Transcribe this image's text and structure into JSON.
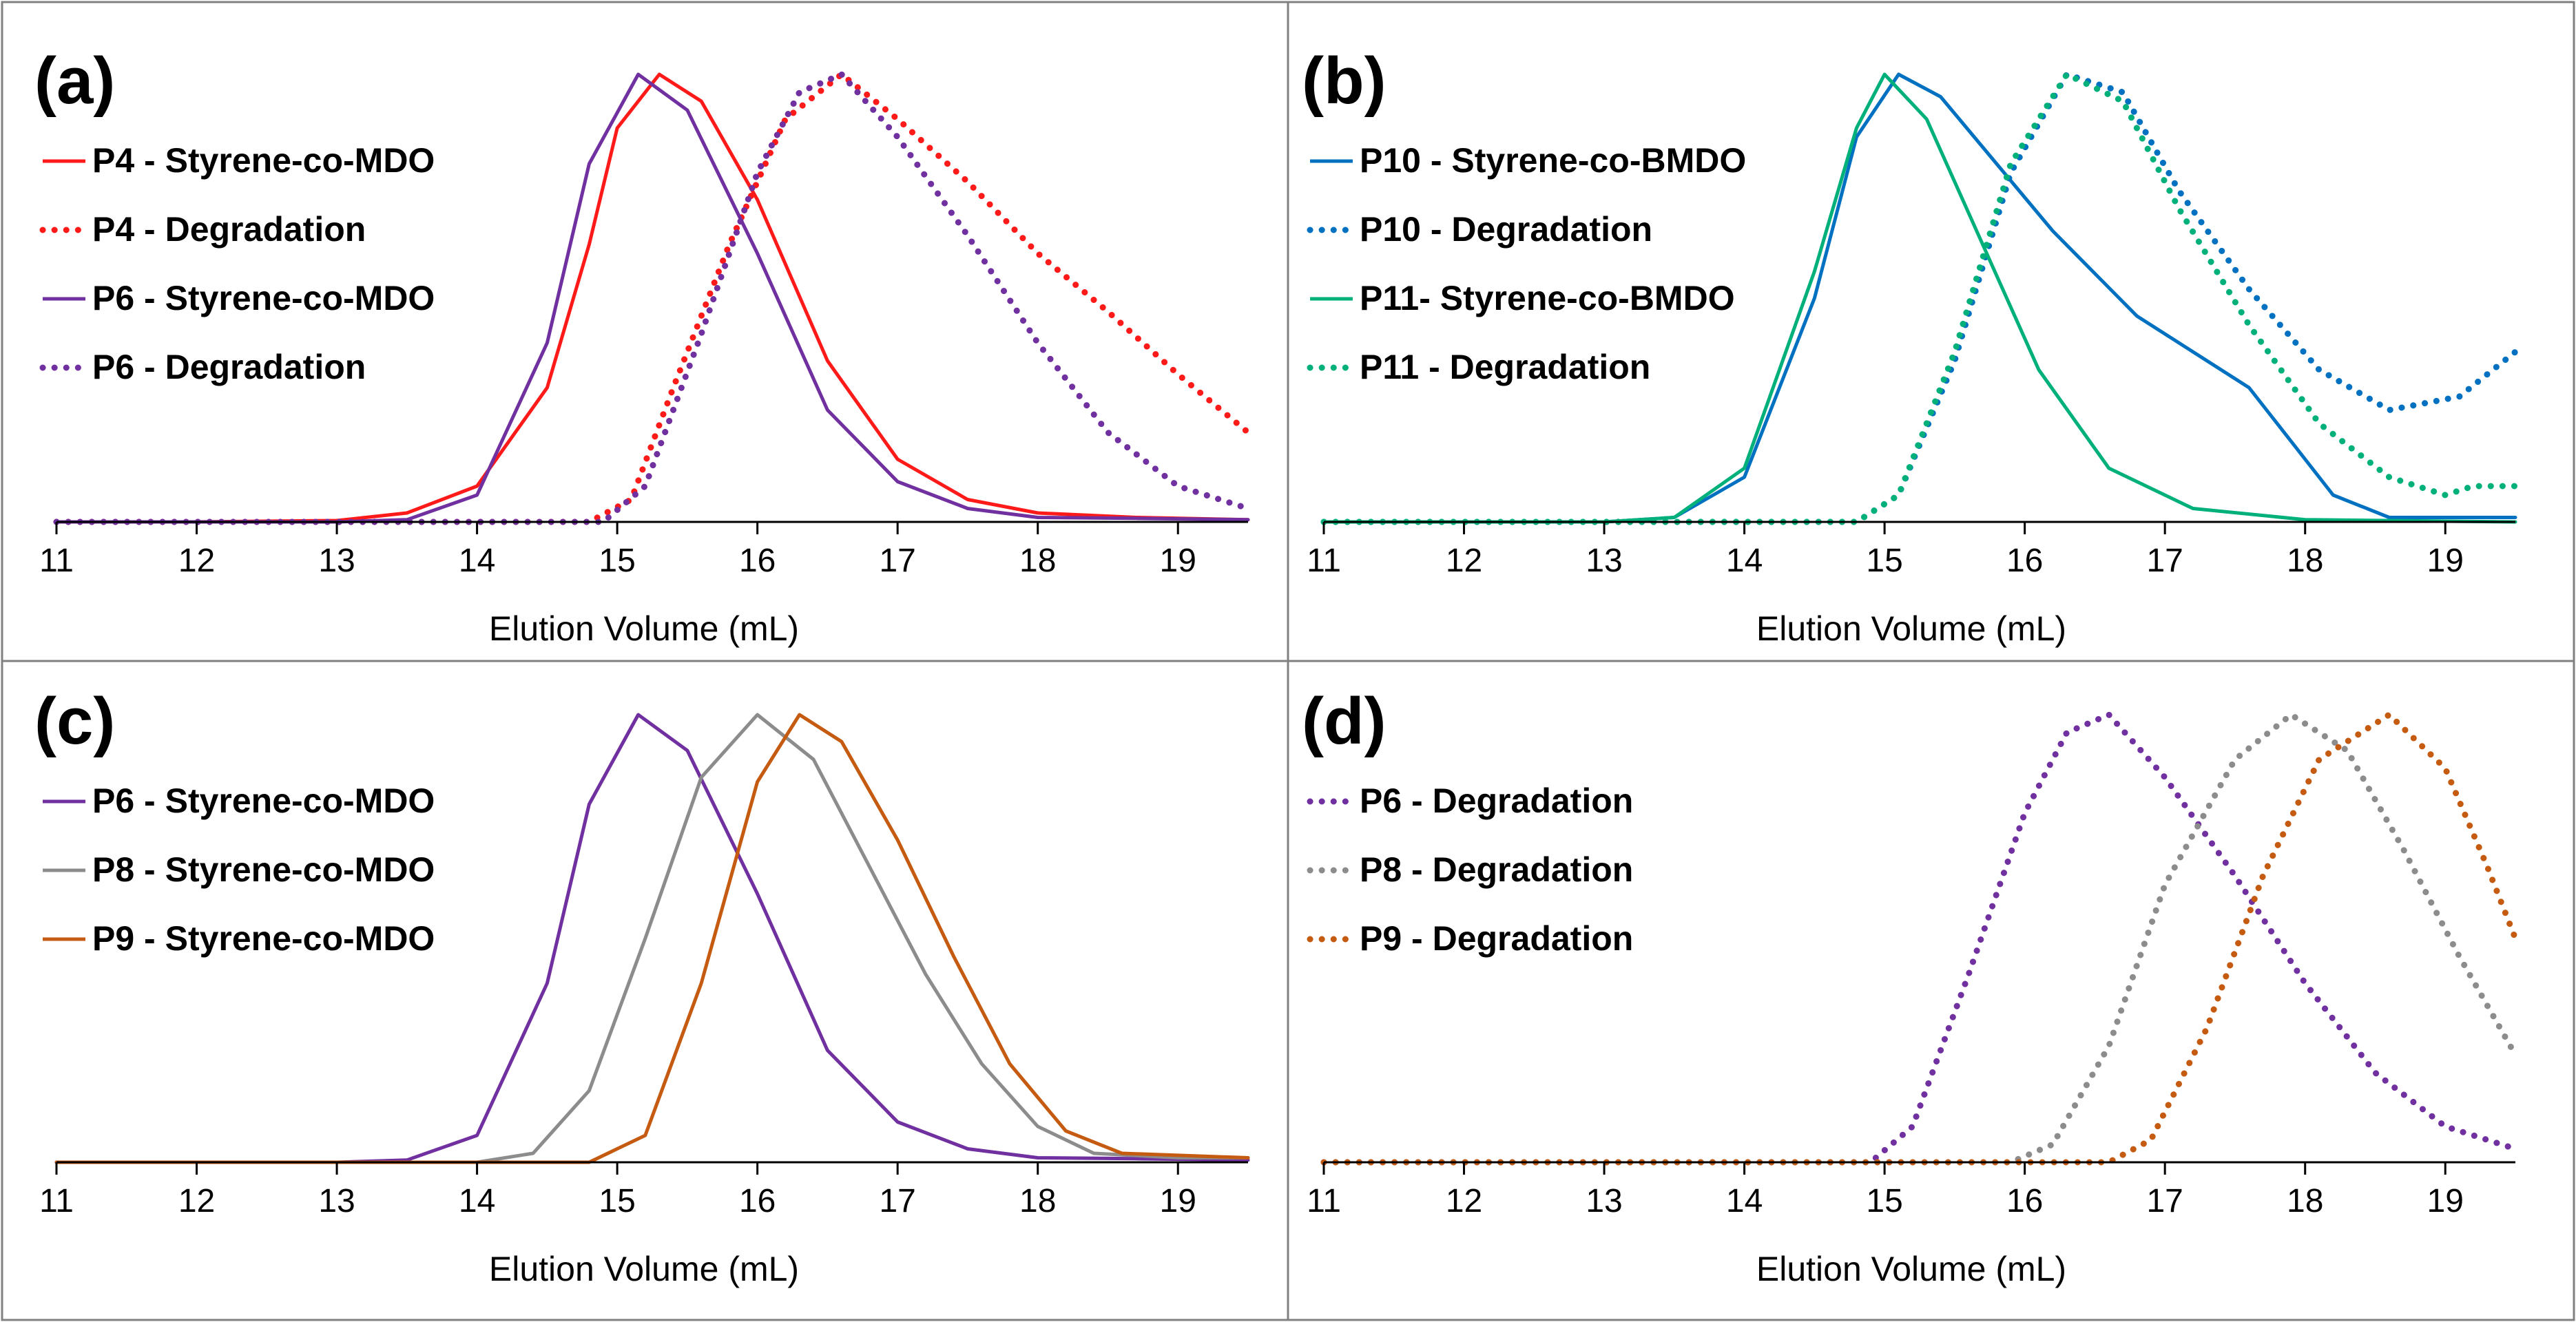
{
  "figure": {
    "x_axis": {
      "xlim": [
        11,
        19.5
      ],
      "ticks": [
        "11",
        "12",
        "13",
        "14",
        "15",
        "16",
        "17",
        "18",
        "19"
      ]
    }
  },
  "chart_data": [
    {
      "type": "line",
      "panel": "(a)",
      "xlabel": "Elution Volume (mL)",
      "ylabel": "",
      "xlim": [
        11,
        19.5
      ],
      "ylim": [
        0,
        1.0
      ],
      "series": [
        {
          "name": "P4 - Styrene-co-MDO",
          "color": "#ff1a1a",
          "style": "solid",
          "points": [
            [
              11,
              0
            ],
            [
              12,
              0
            ],
            [
              13,
              0.003
            ],
            [
              13.5,
              0.02
            ],
            [
              14,
              0.08
            ],
            [
              14.5,
              0.3
            ],
            [
              14.8,
              0.62
            ],
            [
              15.0,
              0.88
            ],
            [
              15.3,
              1.0
            ],
            [
              15.6,
              0.94
            ],
            [
              16.0,
              0.72
            ],
            [
              16.5,
              0.36
            ],
            [
              17,
              0.14
            ],
            [
              17.5,
              0.05
            ],
            [
              18,
              0.02
            ],
            [
              18.7,
              0.01
            ],
            [
              19.5,
              0.005
            ]
          ]
        },
        {
          "name": "P4 - Degradation",
          "color": "#ff1a1a",
          "style": "dotted",
          "points": [
            [
              11,
              0
            ],
            [
              14.8,
              0
            ],
            [
              15.1,
              0.05
            ],
            [
              15.4,
              0.3
            ],
            [
              15.8,
              0.62
            ],
            [
              16.2,
              0.9
            ],
            [
              16.6,
              1.0
            ],
            [
              17.0,
              0.9
            ],
            [
              17.5,
              0.76
            ],
            [
              18,
              0.6
            ],
            [
              18.5,
              0.47
            ],
            [
              19,
              0.33
            ],
            [
              19.5,
              0.2
            ]
          ]
        },
        {
          "name": "P6 - Styrene-co-MDO",
          "color": "#7030a0",
          "style": "solid",
          "points": [
            [
              11,
              0
            ],
            [
              13,
              0
            ],
            [
              13.5,
              0.005
            ],
            [
              14,
              0.06
            ],
            [
              14.5,
              0.4
            ],
            [
              14.8,
              0.8
            ],
            [
              15.15,
              1.0
            ],
            [
              15.5,
              0.92
            ],
            [
              16,
              0.6
            ],
            [
              16.5,
              0.25
            ],
            [
              17,
              0.09
            ],
            [
              17.5,
              0.03
            ],
            [
              18,
              0.01
            ],
            [
              18.7,
              0.008
            ],
            [
              19.5,
              0.005
            ]
          ]
        },
        {
          "name": "P6 - Degradation",
          "color": "#7030a0",
          "style": "dotted",
          "points": [
            [
              11,
              0
            ],
            [
              14.9,
              0
            ],
            [
              15.2,
              0.08
            ],
            [
              15.6,
              0.42
            ],
            [
              16.0,
              0.78
            ],
            [
              16.3,
              0.96
            ],
            [
              16.6,
              1.0
            ],
            [
              17.0,
              0.86
            ],
            [
              17.5,
              0.64
            ],
            [
              18,
              0.4
            ],
            [
              18.5,
              0.2
            ],
            [
              19,
              0.08
            ],
            [
              19.5,
              0.03
            ]
          ]
        }
      ]
    },
    {
      "type": "line",
      "panel": "(b)",
      "xlabel": "Elution Volume (mL)",
      "ylabel": "",
      "xlim": [
        11,
        19.5
      ],
      "ylim": [
        0,
        1.0
      ],
      "series": [
        {
          "name": "P10 - Styrene-co-BMDO",
          "color": "#0070c0",
          "style": "solid",
          "points": [
            [
              11,
              0
            ],
            [
              13,
              0
            ],
            [
              13.5,
              0.01
            ],
            [
              14,
              0.1
            ],
            [
              14.5,
              0.5
            ],
            [
              14.8,
              0.86
            ],
            [
              15.1,
              1.0
            ],
            [
              15.4,
              0.95
            ],
            [
              15.8,
              0.8
            ],
            [
              16.2,
              0.65
            ],
            [
              16.8,
              0.46
            ],
            [
              17.2,
              0.38
            ],
            [
              17.6,
              0.3
            ],
            [
              17.9,
              0.18
            ],
            [
              18.2,
              0.06
            ],
            [
              18.6,
              0.01
            ],
            [
              19.5,
              0.01
            ]
          ]
        },
        {
          "name": "P10 - Degradation",
          "color": "#0070c0",
          "style": "dotted",
          "points": [
            [
              11,
              0
            ],
            [
              14.8,
              0
            ],
            [
              15.1,
              0.06
            ],
            [
              15.5,
              0.36
            ],
            [
              15.9,
              0.78
            ],
            [
              16.3,
              1.0
            ],
            [
              16.7,
              0.96
            ],
            [
              17.1,
              0.74
            ],
            [
              17.6,
              0.52
            ],
            [
              18.1,
              0.34
            ],
            [
              18.6,
              0.25
            ],
            [
              19.1,
              0.28
            ],
            [
              19.5,
              0.38
            ]
          ]
        },
        {
          "name": "P11- Styrene-co-BMDO",
          "color": "#00b07a",
          "style": "solid",
          "points": [
            [
              11,
              0
            ],
            [
              13,
              0
            ],
            [
              13.5,
              0.01
            ],
            [
              14,
              0.12
            ],
            [
              14.5,
              0.56
            ],
            [
              14.8,
              0.88
            ],
            [
              15.0,
              1.0
            ],
            [
              15.3,
              0.9
            ],
            [
              15.7,
              0.62
            ],
            [
              16.1,
              0.34
            ],
            [
              16.6,
              0.12
            ],
            [
              17.2,
              0.03
            ],
            [
              18,
              0.005
            ],
            [
              19.5,
              0
            ]
          ]
        },
        {
          "name": "P11 - Degradation",
          "color": "#00b07a",
          "style": "dotted",
          "points": [
            [
              11,
              0
            ],
            [
              14.8,
              0
            ],
            [
              15.1,
              0.06
            ],
            [
              15.5,
              0.38
            ],
            [
              15.9,
              0.8
            ],
            [
              16.3,
              1.0
            ],
            [
              16.7,
              0.94
            ],
            [
              17.1,
              0.7
            ],
            [
              17.6,
              0.44
            ],
            [
              18.1,
              0.22
            ],
            [
              18.6,
              0.1
            ],
            [
              19,
              0.06
            ],
            [
              19.2,
              0.08
            ],
            [
              19.5,
              0.08
            ]
          ]
        }
      ]
    },
    {
      "type": "line",
      "panel": "(c)",
      "xlabel": "Elution Volume (mL)",
      "ylabel": "",
      "xlim": [
        11,
        19.5
      ],
      "ylim": [
        0,
        1.0
      ],
      "series": [
        {
          "name": "P6 - Styrene-co-MDO",
          "color": "#7030a0",
          "style": "solid",
          "points": [
            [
              11,
              0
            ],
            [
              13,
              0
            ],
            [
              13.5,
              0.005
            ],
            [
              14,
              0.06
            ],
            [
              14.5,
              0.4
            ],
            [
              14.8,
              0.8
            ],
            [
              15.15,
              1.0
            ],
            [
              15.5,
              0.92
            ],
            [
              16,
              0.6
            ],
            [
              16.5,
              0.25
            ],
            [
              17,
              0.09
            ],
            [
              17.5,
              0.03
            ],
            [
              18,
              0.01
            ],
            [
              18.7,
              0.008
            ],
            [
              19.5,
              0.005
            ]
          ]
        },
        {
          "name": "P8 - Styrene-co-MDO",
          "color": "#8c8c8c",
          "style": "solid",
          "points": [
            [
              11,
              0
            ],
            [
              14,
              0
            ],
            [
              14.4,
              0.02
            ],
            [
              14.8,
              0.16
            ],
            [
              15.2,
              0.5
            ],
            [
              15.6,
              0.86
            ],
            [
              16.0,
              1.0
            ],
            [
              16.4,
              0.9
            ],
            [
              16.8,
              0.66
            ],
            [
              17.2,
              0.42
            ],
            [
              17.6,
              0.22
            ],
            [
              18,
              0.08
            ],
            [
              18.4,
              0.02
            ],
            [
              19,
              0.01
            ],
            [
              19.5,
              0.01
            ]
          ]
        },
        {
          "name": "P9 - Styrene-co-MDO",
          "color": "#c55a11",
          "style": "solid",
          "points": [
            [
              11,
              0
            ],
            [
              14.8,
              0
            ],
            [
              15.2,
              0.06
            ],
            [
              15.6,
              0.4
            ],
            [
              16.0,
              0.85
            ],
            [
              16.3,
              1.0
            ],
            [
              16.6,
              0.94
            ],
            [
              17.0,
              0.72
            ],
            [
              17.4,
              0.46
            ],
            [
              17.8,
              0.22
            ],
            [
              18.2,
              0.07
            ],
            [
              18.6,
              0.02
            ],
            [
              19.5,
              0.01
            ]
          ]
        }
      ]
    },
    {
      "type": "line",
      "panel": "(d)",
      "xlabel": "Elution Volume (mL)",
      "ylabel": "",
      "xlim": [
        11,
        19.5
      ],
      "ylim": [
        0,
        1.0
      ],
      "series": [
        {
          "name": "P6 - Degradation",
          "color": "#7030a0",
          "style": "dotted",
          "points": [
            [
              11,
              0
            ],
            [
              14.9,
              0
            ],
            [
              15.2,
              0.08
            ],
            [
              15.6,
              0.42
            ],
            [
              16.0,
              0.78
            ],
            [
              16.3,
              0.96
            ],
            [
              16.6,
              1.0
            ],
            [
              17.0,
              0.86
            ],
            [
              17.5,
              0.64
            ],
            [
              18,
              0.4
            ],
            [
              18.5,
              0.2
            ],
            [
              19,
              0.08
            ],
            [
              19.5,
              0.03
            ]
          ]
        },
        {
          "name": "P8 - Degradation",
          "color": "#8c8c8c",
          "style": "dotted",
          "points": [
            [
              11,
              0
            ],
            [
              15.9,
              0
            ],
            [
              16.2,
              0.04
            ],
            [
              16.6,
              0.26
            ],
            [
              17.0,
              0.62
            ],
            [
              17.5,
              0.9
            ],
            [
              17.9,
              1.0
            ],
            [
              18.3,
              0.92
            ],
            [
              18.7,
              0.7
            ],
            [
              19.1,
              0.46
            ],
            [
              19.5,
              0.24
            ]
          ]
        },
        {
          "name": "P9 - Degradation",
          "color": "#c55a11",
          "style": "dotted",
          "points": [
            [
              11,
              0
            ],
            [
              16.6,
              0
            ],
            [
              16.9,
              0.05
            ],
            [
              17.3,
              0.3
            ],
            [
              17.7,
              0.64
            ],
            [
              18.1,
              0.9
            ],
            [
              18.6,
              1.0
            ],
            [
              19.0,
              0.88
            ],
            [
              19.3,
              0.66
            ],
            [
              19.5,
              0.5
            ]
          ]
        }
      ]
    }
  ]
}
